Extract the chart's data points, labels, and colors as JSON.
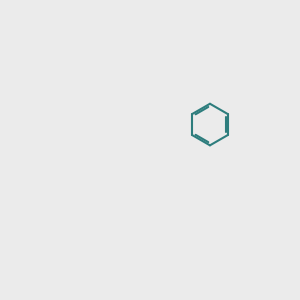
{
  "bg_color": "#ebebeb",
  "bond_color": "#2d7d7d",
  "o_color": "#ff0000",
  "lw": 1.5,
  "lw2": 1.5
}
